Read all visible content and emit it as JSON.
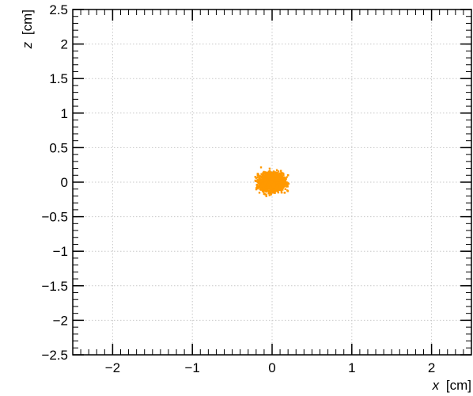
{
  "chart_data": {
    "type": "scatter",
    "title": "",
    "xlabel": {
      "symbol": "x",
      "unit": "[cm]"
    },
    "ylabel": {
      "symbol": "z",
      "unit": "[cm]"
    },
    "xlim": [
      -2.5,
      2.5
    ],
    "ylim": [
      -2.5,
      2.5
    ],
    "x_ticks": [
      -2,
      -1,
      0,
      1,
      2
    ],
    "x_tick_labels": [
      "−2",
      "−1",
      "0",
      "1",
      "2"
    ],
    "y_ticks": [
      2.5,
      2,
      1.5,
      1,
      0.5,
      0,
      -0.5,
      -1,
      -1.5,
      -2,
      -2.5
    ],
    "y_tick_labels": [
      "2.5",
      "2",
      "1.5",
      "1",
      "0.5",
      "0",
      "−0.5",
      "−1",
      "−1.5",
      "−2",
      "−2.5"
    ],
    "grid": true,
    "legend": "none",
    "series": [
      {
        "color": "#ff9900",
        "distribution": {
          "center": [
            0.0,
            0.0
          ],
          "sigma": [
            0.07,
            0.06
          ],
          "max_radius": [
            0.22,
            0.22
          ]
        },
        "points": [
          [
            0.0,
            0.0
          ],
          [
            0.05,
            0.02
          ],
          [
            -0.06,
            0.03
          ],
          [
            0.1,
            -0.04
          ],
          [
            -0.12,
            -0.02
          ],
          [
            0.15,
            0.06
          ],
          [
            -0.16,
            0.05
          ],
          [
            0.04,
            0.12
          ],
          [
            -0.03,
            -0.13
          ],
          [
            0.18,
            -0.02
          ],
          [
            -0.19,
            -0.04
          ],
          [
            0.2,
            0.1
          ],
          [
            -0.18,
            0.12
          ],
          [
            0.12,
            -0.15
          ],
          [
            -0.1,
            -0.17
          ],
          [
            0.02,
            0.15
          ],
          [
            0.08,
            0.08
          ],
          [
            -0.08,
            -0.08
          ],
          [
            0.13,
            0.13
          ],
          [
            -0.14,
            -0.1
          ]
        ]
      }
    ]
  }
}
